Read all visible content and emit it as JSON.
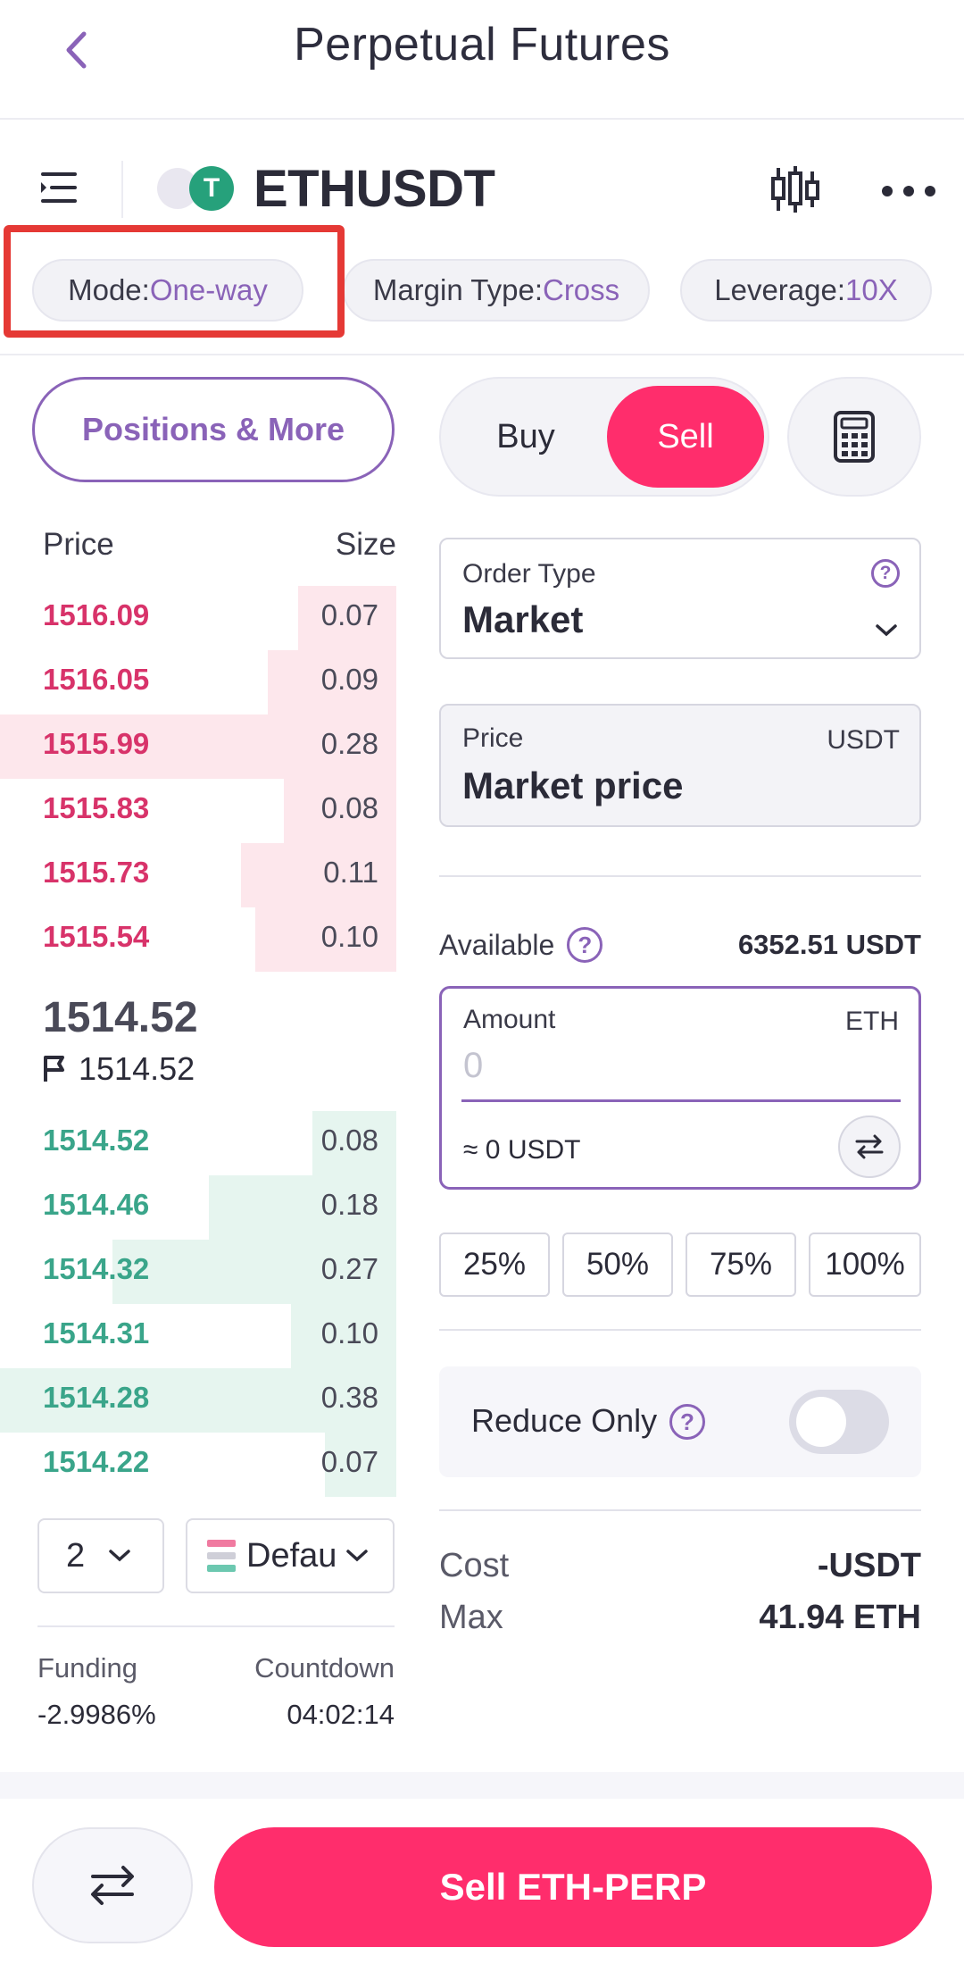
{
  "header": {
    "title": "Perpetual Futures"
  },
  "symbol": {
    "name": "ETHUSDT",
    "coin_glyph": "T"
  },
  "chips": {
    "mode_label": "Mode: ",
    "mode_value": "One-way",
    "margin_label": "Margin Type: ",
    "margin_value": "Cross",
    "leverage_label": "Leverage: ",
    "leverage_value": "10X"
  },
  "positions_button": "Positions & More",
  "orderbook": {
    "price_header": "Price",
    "size_header": "Size",
    "asks": [
      {
        "price": "1516.09",
        "size": "0.07"
      },
      {
        "price": "1516.05",
        "size": "0.09"
      },
      {
        "price": "1515.99",
        "size": "0.28"
      },
      {
        "price": "1515.83",
        "size": "0.08"
      },
      {
        "price": "1515.73",
        "size": "0.11"
      },
      {
        "price": "1515.54",
        "size": "0.10"
      }
    ],
    "last_price": "1514.52",
    "mark_price": "1514.52",
    "bids": [
      {
        "price": "1514.52",
        "size": "0.08"
      },
      {
        "price": "1514.46",
        "size": "0.18"
      },
      {
        "price": "1514.32",
        "size": "0.27"
      },
      {
        "price": "1514.31",
        "size": "0.10"
      },
      {
        "price": "1514.28",
        "size": "0.38"
      },
      {
        "price": "1514.22",
        "size": "0.07"
      }
    ],
    "precision": "2",
    "layout_select": "Defau"
  },
  "funding": {
    "label": "Funding",
    "value": "-2.9986%",
    "countdown_label": "Countdown",
    "countdown_value": "04:02:14"
  },
  "trade": {
    "buy": "Buy",
    "sell": "Sell",
    "order_type_label": "Order Type",
    "order_type_value": "Market",
    "price_label": "Price",
    "price_unit": "USDT",
    "price_value": "Market price",
    "available_label": "Available",
    "available_value": "6352.51 USDT",
    "amount_label": "Amount",
    "amount_unit": "ETH",
    "amount_placeholder": "0",
    "amount_usdt": "≈ 0 USDT",
    "percents": [
      "25%",
      "50%",
      "75%",
      "100%"
    ],
    "reduce_only": "Reduce Only",
    "cost_label": "Cost",
    "cost_value": "-USDT",
    "max_label": "Max",
    "max_value": "41.94 ETH"
  },
  "bottom": {
    "sell_button": "Sell ETH-PERP"
  },
  "colors": {
    "accent": "#8a63b8",
    "sell": "#ff2d6c",
    "ask_text": "#d8336a",
    "bid_text": "#3aa58a",
    "highlight": "#e53935"
  }
}
